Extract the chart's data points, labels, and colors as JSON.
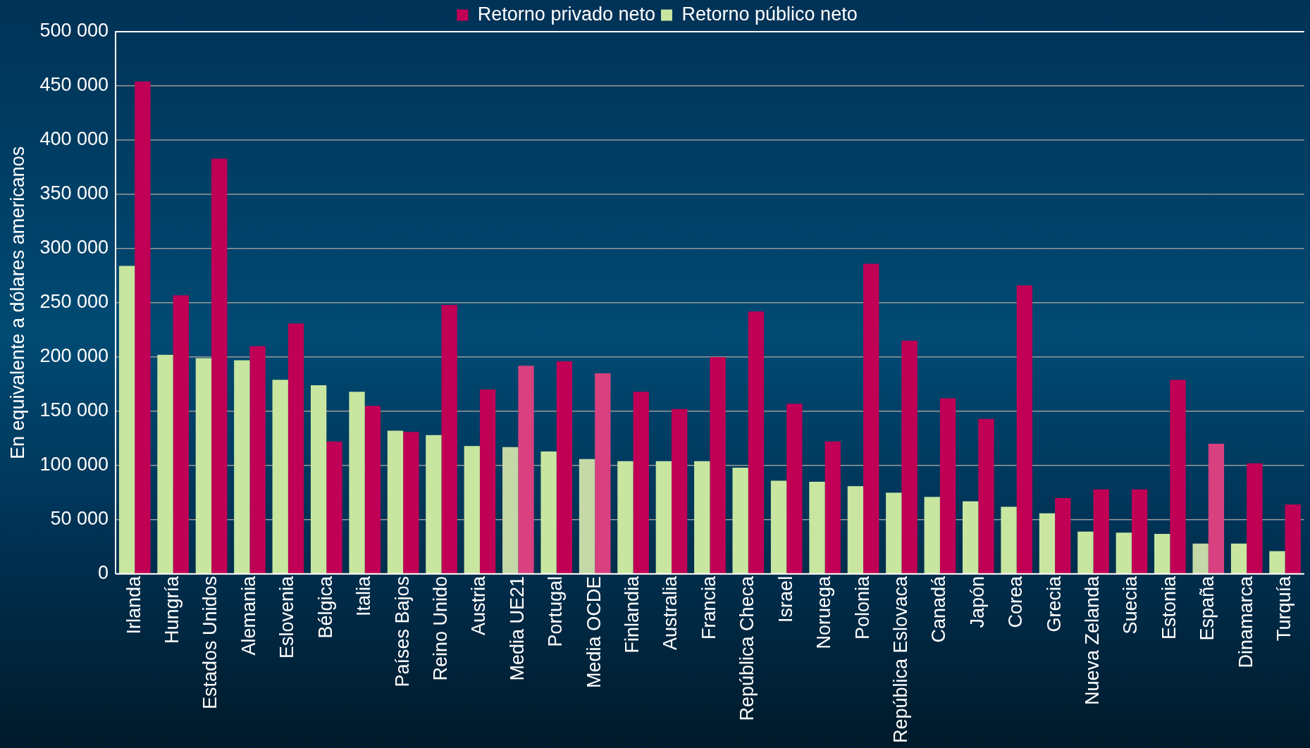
{
  "chart_data": {
    "type": "bar",
    "ylabel": "En equivalente a dólares americanos",
    "categories": [
      "Irlanda",
      "Hungría",
      "Estados Unidos",
      "Alemania",
      "Eslovenia",
      "Bélgica",
      "Italia",
      "Países Bajos",
      "Reino Unido",
      "Austria",
      "Media UE21",
      "Portugal",
      "Media OCDE",
      "Finlandia",
      "Australia",
      "Francia",
      "República Checa",
      "Israel",
      "Noruega",
      "Polonia",
      "República Eslovaca",
      "Canadá",
      "Japón",
      "Corea",
      "Grecia",
      "Nueva Zelanda",
      "Suecia",
      "Estonia",
      "España",
      "Dinamarca",
      "Turquía"
    ],
    "series": [
      {
        "name": "Retorno público neto",
        "color": "#c8e6a0",
        "colors": [
          "#c8e6a0",
          "#c8e6a0",
          "#c8e6a0",
          "#c8e6a0",
          "#c8e6a0",
          "#c8e6a0",
          "#c8e6a0",
          "#c8e6a0",
          "#c8e6a0",
          "#c8e6a0",
          "#c4d8a8",
          "#c8e6a0",
          "#c4d8a8",
          "#c8e6a0",
          "#c8e6a0",
          "#c8e6a0",
          "#c8e6a0",
          "#c8e6a0",
          "#c8e6a0",
          "#c8e6a0",
          "#c8e6a0",
          "#c8e6a0",
          "#c8e6a0",
          "#c8e6a0",
          "#c8e6a0",
          "#c8e6a0",
          "#c8e6a0",
          "#c8e6a0",
          "#c4d8a8",
          "#c8e6a0",
          "#c8e6a0"
        ],
        "values": [
          284000,
          202000,
          199000,
          197000,
          179000,
          174000,
          168000,
          132000,
          128000,
          118000,
          117000,
          113000,
          106000,
          104000,
          104000,
          104000,
          98000,
          86000,
          85000,
          81000,
          75000,
          71000,
          67000,
          62000,
          56000,
          39000,
          38000,
          37000,
          28000,
          28000,
          21000
        ]
      },
      {
        "name": "Retorno privado neto",
        "color": "#c00055",
        "colors": [
          "#c00055",
          "#c00055",
          "#c00055",
          "#c00055",
          "#c00055",
          "#c00055",
          "#c00055",
          "#c00055",
          "#c00055",
          "#c00055",
          "#d8407f",
          "#c00055",
          "#d8407f",
          "#c00055",
          "#c00055",
          "#c00055",
          "#c00055",
          "#c00055",
          "#c00055",
          "#c00055",
          "#c00055",
          "#c00055",
          "#c00055",
          "#c00055",
          "#c00055",
          "#c00055",
          "#c00055",
          "#c00055",
          "#d8407f",
          "#c00055",
          "#c00055"
        ],
        "values": [
          454000,
          257000,
          383000,
          210000,
          231000,
          122000,
          155000,
          131000,
          248000,
          170000,
          192000,
          196000,
          185000,
          168000,
          152000,
          200000,
          242000,
          157000,
          122000,
          286000,
          215000,
          162000,
          143000,
          266000,
          70000,
          78000,
          78000,
          179000,
          120000,
          102000,
          64000
        ]
      }
    ],
    "ylim": [
      0,
      500000
    ],
    "yticks": [
      0,
      {
        "value": 50000,
        "label": "50 000"
      },
      {
        "value": 100000,
        "label": "100 000"
      },
      {
        "value": 150000,
        "label": "150 000"
      },
      {
        "value": 200000,
        "label": "200 000"
      },
      {
        "value": 250000,
        "label": "250 000"
      },
      {
        "value": 300000,
        "label": "300 000"
      },
      {
        "value": 350000,
        "label": "350 000"
      },
      {
        "value": 400000,
        "label": "400 000"
      },
      {
        "value": 450000,
        "label": "450 000"
      },
      {
        "value": 500000,
        "label": "500 000"
      }
    ],
    "grid": "y",
    "legend": "top"
  }
}
